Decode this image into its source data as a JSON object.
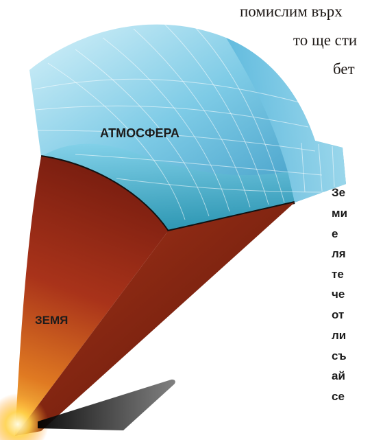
{
  "top_text": {
    "lines": [
      "помислим върх",
      "то ще сти",
      "бет"
    ]
  },
  "labels": {
    "atmosphere": "АТМОСФЕРА",
    "earth": "ЗЕМЯ"
  },
  "side_text": {
    "lines": [
      "Зе",
      "ми",
      "е",
      "ля",
      "те",
      "че",
      "от",
      "ли",
      "съ",
      "ай",
      "се"
    ]
  },
  "colors": {
    "atmosphere_light": "#bfe8f4",
    "atmosphere_mid": "#6ec3e2",
    "atmosphere_dark": "#3a9cc9",
    "grid_lines": "#ffffff",
    "earth_dark": "#7a1e10",
    "earth_mid": "#b73a17",
    "earth_glow": "#ffd24a",
    "shadow": "#2a2a2a"
  }
}
